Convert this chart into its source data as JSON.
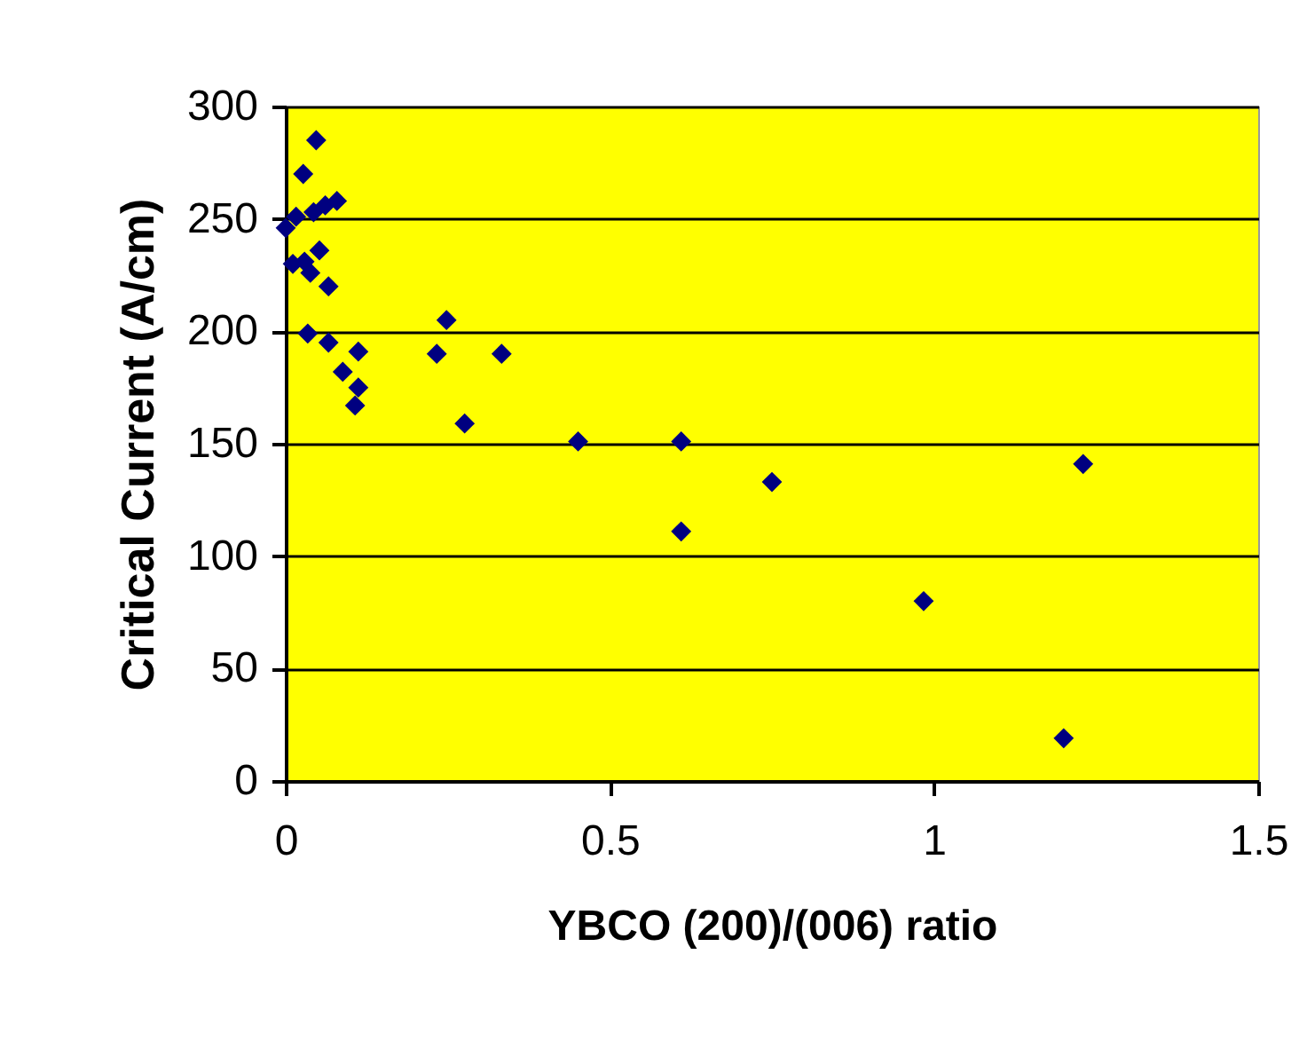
{
  "chart_data": {
    "type": "scatter",
    "xlabel": "YBCO (200)/(006) ratio",
    "ylabel": "Critical Current (A/cm)",
    "x": [
      0.047,
      0.027,
      0.079,
      0,
      0.016,
      0.043,
      0.061,
      0.011,
      0.029,
      0.052,
      0.038,
      0.066,
      0.034,
      0.066,
      0.112,
      0.088,
      0.112,
      0.107,
      0.248,
      0.233,
      0.333,
      0.276,
      0.451,
      0.61,
      0.75,
      0.61,
      0.984,
      1.23,
      1.2
    ],
    "series": [
      {
        "color": "#000080",
        "values": [
          285,
          270,
          258,
          246,
          251,
          253,
          256,
          230,
          231,
          236,
          226,
          220,
          199,
          195,
          191,
          182,
          175,
          167,
          205,
          190,
          190,
          159,
          151,
          151,
          133,
          111,
          80,
          141,
          19
        ]
      }
    ],
    "xlim": [
      0,
      1.5
    ],
    "xticks": [
      0,
      0.5,
      1,
      1.5
    ],
    "ylim": [
      0,
      300
    ],
    "yticks": [
      0,
      50,
      100,
      150,
      200,
      250,
      300
    ],
    "grid": "y",
    "marker": "diamond"
  }
}
